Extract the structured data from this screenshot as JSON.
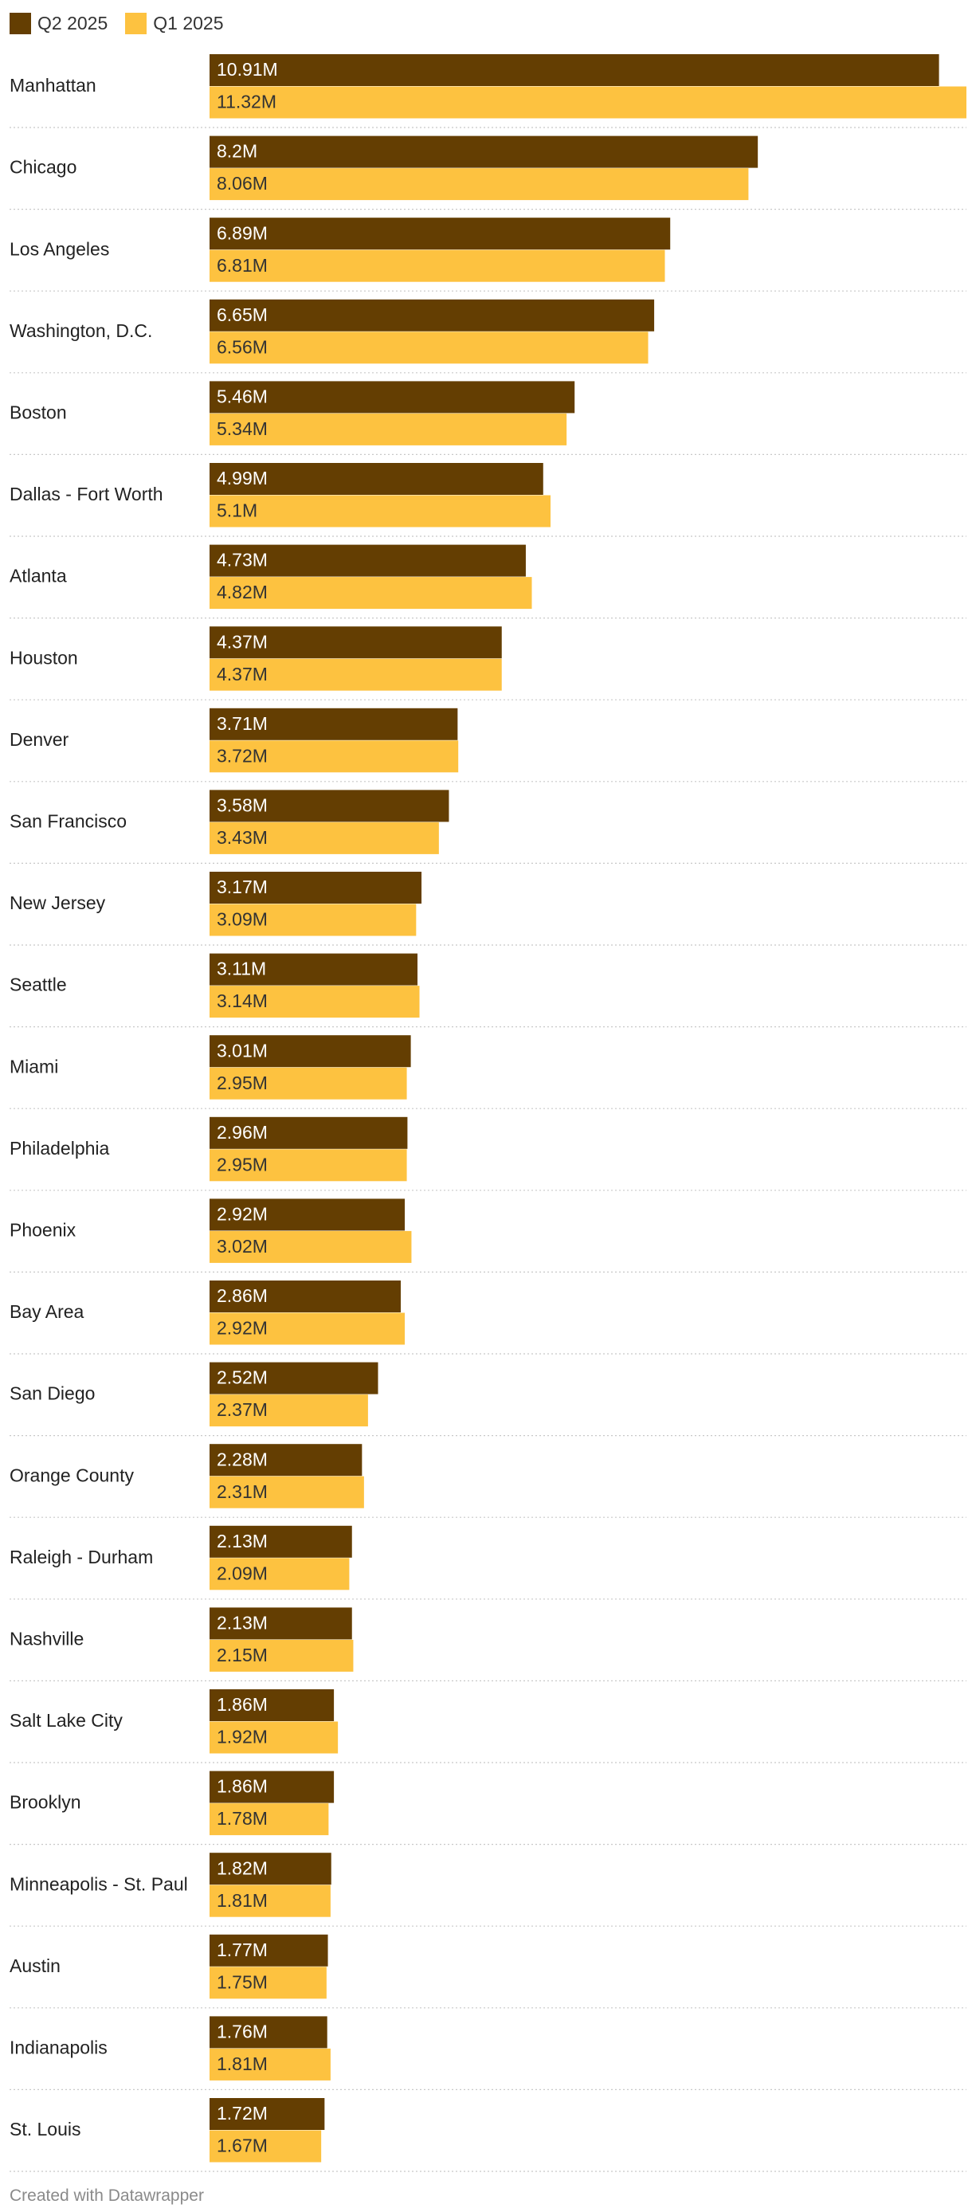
{
  "legend": {
    "items": [
      {
        "label": "Q2 2025",
        "color": "#643e02"
      },
      {
        "label": "Q1 2025",
        "color": "#fdc240"
      }
    ]
  },
  "footer": {
    "credit": "Created with Datawrapper"
  },
  "chart_data": {
    "type": "bar",
    "orientation": "horizontal",
    "grouped": true,
    "title": "",
    "xlabel": "",
    "ylabel": "",
    "xlim": [
      0,
      11.32
    ],
    "unit_suffix": "M",
    "grid": false,
    "legend_position": "top-left",
    "categories": [
      "Manhattan",
      "Chicago",
      "Los Angeles",
      "Washington, D.C.",
      "Boston",
      "Dallas - Fort Worth",
      "Atlanta",
      "Houston",
      "Denver",
      "San Francisco",
      "New Jersey",
      "Seattle",
      "Miami",
      "Philadelphia",
      "Phoenix",
      "Bay Area",
      "San Diego",
      "Orange County",
      "Raleigh - Durham",
      "Nashville",
      "Salt Lake City",
      "Brooklyn",
      "Minneapolis - St. Paul",
      "Austin",
      "Indianapolis",
      "St. Louis"
    ],
    "series": [
      {
        "name": "Q2 2025",
        "color": "#643e02",
        "label_color": "#ffffff",
        "values": [
          10.91,
          8.2,
          6.89,
          6.65,
          5.46,
          4.99,
          4.73,
          4.37,
          3.71,
          3.58,
          3.17,
          3.11,
          3.01,
          2.96,
          2.92,
          2.86,
          2.52,
          2.28,
          2.13,
          2.13,
          1.86,
          1.86,
          1.82,
          1.77,
          1.76,
          1.72
        ],
        "labels": [
          "10.91M",
          "8.2M",
          "6.89M",
          "6.65M",
          "5.46M",
          "4.99M",
          "4.73M",
          "4.37M",
          "3.71M",
          "3.58M",
          "3.17M",
          "3.11M",
          "3.01M",
          "2.96M",
          "2.92M",
          "2.86M",
          "2.52M",
          "2.28M",
          "2.13M",
          "2.13M",
          "1.86M",
          "1.86M",
          "1.82M",
          "1.77M",
          "1.76M",
          "1.72M"
        ]
      },
      {
        "name": "Q1 2025",
        "color": "#fdc240",
        "label_color": "#333333",
        "values": [
          11.32,
          8.06,
          6.81,
          6.56,
          5.34,
          5.1,
          4.82,
          4.37,
          3.72,
          3.43,
          3.09,
          3.14,
          2.95,
          2.95,
          3.02,
          2.92,
          2.37,
          2.31,
          2.09,
          2.15,
          1.92,
          1.78,
          1.81,
          1.75,
          1.81,
          1.67
        ],
        "labels": [
          "11.32M",
          "8.06M",
          "6.81M",
          "6.56M",
          "5.34M",
          "5.1M",
          "4.82M",
          "4.37M",
          "3.72M",
          "3.43M",
          "3.09M",
          "3.14M",
          "2.95M",
          "2.95M",
          "3.02M",
          "2.92M",
          "2.37M",
          "2.31M",
          "2.09M",
          "2.15M",
          "1.92M",
          "1.78M",
          "1.81M",
          "1.75M",
          "1.81M",
          "1.67M"
        ]
      }
    ]
  }
}
